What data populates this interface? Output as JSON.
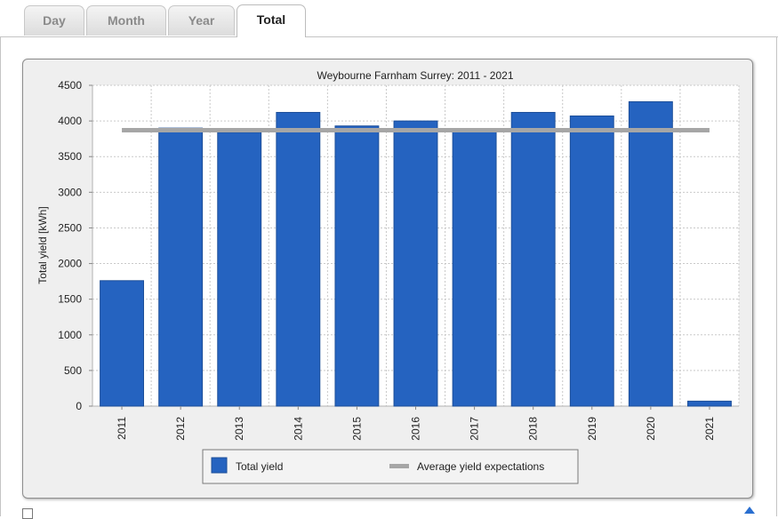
{
  "tabs": [
    {
      "label": "Day",
      "active": false
    },
    {
      "label": "Month",
      "active": false
    },
    {
      "label": "Year",
      "active": false
    },
    {
      "label": "Total",
      "active": true
    }
  ],
  "chart_data": {
    "type": "bar",
    "title": "Weybourne Farnham Surrey: 2011 - 2021",
    "xlabel": "",
    "ylabel": "Total yield [kWh]",
    "ylim": [
      0,
      4500
    ],
    "yticks": [
      0,
      500,
      1000,
      1500,
      2000,
      2500,
      3000,
      3500,
      4000,
      4500
    ],
    "grid": true,
    "legend_position": "bottom",
    "categories": [
      "2011",
      "2012",
      "2013",
      "2014",
      "2015",
      "2016",
      "2017",
      "2018",
      "2019",
      "2020",
      "2021"
    ],
    "series": [
      {
        "name": "Total yield",
        "kind": "bar",
        "color": "#2563c0",
        "values": [
          1760,
          3900,
          3840,
          4120,
          3930,
          4000,
          3870,
          4120,
          4070,
          4270,
          70
        ]
      },
      {
        "name": "Average yield expectations",
        "kind": "line",
        "color": "#a6a6a6",
        "values": [
          3870,
          3870,
          3870,
          3870,
          3870,
          3870,
          3870,
          3870,
          3870,
          3870,
          3870
        ]
      }
    ]
  }
}
